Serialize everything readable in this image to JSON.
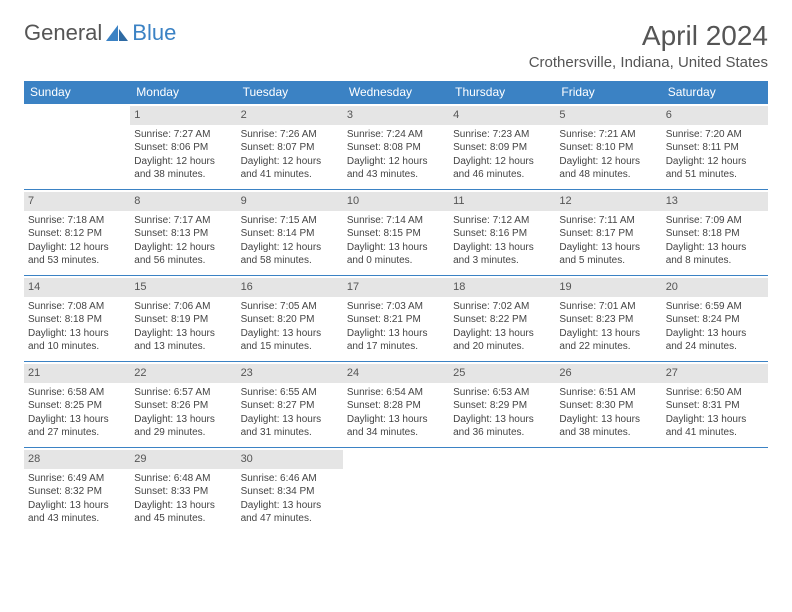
{
  "logo": {
    "part1": "General",
    "part2": "Blue"
  },
  "title": "April 2024",
  "location": "Crothersville, Indiana, United States",
  "colors": {
    "accent": "#3b82c4",
    "daynum_bg": "#e5e5e5",
    "text": "#444444"
  },
  "day_headers": [
    "Sunday",
    "Monday",
    "Tuesday",
    "Wednesday",
    "Thursday",
    "Friday",
    "Saturday"
  ],
  "weeks": [
    [
      {
        "empty": true
      },
      {
        "n": "1",
        "sr": "Sunrise: 7:27 AM",
        "ss": "Sunset: 8:06 PM",
        "dl1": "Daylight: 12 hours",
        "dl2": "and 38 minutes."
      },
      {
        "n": "2",
        "sr": "Sunrise: 7:26 AM",
        "ss": "Sunset: 8:07 PM",
        "dl1": "Daylight: 12 hours",
        "dl2": "and 41 minutes."
      },
      {
        "n": "3",
        "sr": "Sunrise: 7:24 AM",
        "ss": "Sunset: 8:08 PM",
        "dl1": "Daylight: 12 hours",
        "dl2": "and 43 minutes."
      },
      {
        "n": "4",
        "sr": "Sunrise: 7:23 AM",
        "ss": "Sunset: 8:09 PM",
        "dl1": "Daylight: 12 hours",
        "dl2": "and 46 minutes."
      },
      {
        "n": "5",
        "sr": "Sunrise: 7:21 AM",
        "ss": "Sunset: 8:10 PM",
        "dl1": "Daylight: 12 hours",
        "dl2": "and 48 minutes."
      },
      {
        "n": "6",
        "sr": "Sunrise: 7:20 AM",
        "ss": "Sunset: 8:11 PM",
        "dl1": "Daylight: 12 hours",
        "dl2": "and 51 minutes."
      }
    ],
    [
      {
        "n": "7",
        "sr": "Sunrise: 7:18 AM",
        "ss": "Sunset: 8:12 PM",
        "dl1": "Daylight: 12 hours",
        "dl2": "and 53 minutes."
      },
      {
        "n": "8",
        "sr": "Sunrise: 7:17 AM",
        "ss": "Sunset: 8:13 PM",
        "dl1": "Daylight: 12 hours",
        "dl2": "and 56 minutes."
      },
      {
        "n": "9",
        "sr": "Sunrise: 7:15 AM",
        "ss": "Sunset: 8:14 PM",
        "dl1": "Daylight: 12 hours",
        "dl2": "and 58 minutes."
      },
      {
        "n": "10",
        "sr": "Sunrise: 7:14 AM",
        "ss": "Sunset: 8:15 PM",
        "dl1": "Daylight: 13 hours",
        "dl2": "and 0 minutes."
      },
      {
        "n": "11",
        "sr": "Sunrise: 7:12 AM",
        "ss": "Sunset: 8:16 PM",
        "dl1": "Daylight: 13 hours",
        "dl2": "and 3 minutes."
      },
      {
        "n": "12",
        "sr": "Sunrise: 7:11 AM",
        "ss": "Sunset: 8:17 PM",
        "dl1": "Daylight: 13 hours",
        "dl2": "and 5 minutes."
      },
      {
        "n": "13",
        "sr": "Sunrise: 7:09 AM",
        "ss": "Sunset: 8:18 PM",
        "dl1": "Daylight: 13 hours",
        "dl2": "and 8 minutes."
      }
    ],
    [
      {
        "n": "14",
        "sr": "Sunrise: 7:08 AM",
        "ss": "Sunset: 8:18 PM",
        "dl1": "Daylight: 13 hours",
        "dl2": "and 10 minutes."
      },
      {
        "n": "15",
        "sr": "Sunrise: 7:06 AM",
        "ss": "Sunset: 8:19 PM",
        "dl1": "Daylight: 13 hours",
        "dl2": "and 13 minutes."
      },
      {
        "n": "16",
        "sr": "Sunrise: 7:05 AM",
        "ss": "Sunset: 8:20 PM",
        "dl1": "Daylight: 13 hours",
        "dl2": "and 15 minutes."
      },
      {
        "n": "17",
        "sr": "Sunrise: 7:03 AM",
        "ss": "Sunset: 8:21 PM",
        "dl1": "Daylight: 13 hours",
        "dl2": "and 17 minutes."
      },
      {
        "n": "18",
        "sr": "Sunrise: 7:02 AM",
        "ss": "Sunset: 8:22 PM",
        "dl1": "Daylight: 13 hours",
        "dl2": "and 20 minutes."
      },
      {
        "n": "19",
        "sr": "Sunrise: 7:01 AM",
        "ss": "Sunset: 8:23 PM",
        "dl1": "Daylight: 13 hours",
        "dl2": "and 22 minutes."
      },
      {
        "n": "20",
        "sr": "Sunrise: 6:59 AM",
        "ss": "Sunset: 8:24 PM",
        "dl1": "Daylight: 13 hours",
        "dl2": "and 24 minutes."
      }
    ],
    [
      {
        "n": "21",
        "sr": "Sunrise: 6:58 AM",
        "ss": "Sunset: 8:25 PM",
        "dl1": "Daylight: 13 hours",
        "dl2": "and 27 minutes."
      },
      {
        "n": "22",
        "sr": "Sunrise: 6:57 AM",
        "ss": "Sunset: 8:26 PM",
        "dl1": "Daylight: 13 hours",
        "dl2": "and 29 minutes."
      },
      {
        "n": "23",
        "sr": "Sunrise: 6:55 AM",
        "ss": "Sunset: 8:27 PM",
        "dl1": "Daylight: 13 hours",
        "dl2": "and 31 minutes."
      },
      {
        "n": "24",
        "sr": "Sunrise: 6:54 AM",
        "ss": "Sunset: 8:28 PM",
        "dl1": "Daylight: 13 hours",
        "dl2": "and 34 minutes."
      },
      {
        "n": "25",
        "sr": "Sunrise: 6:53 AM",
        "ss": "Sunset: 8:29 PM",
        "dl1": "Daylight: 13 hours",
        "dl2": "and 36 minutes."
      },
      {
        "n": "26",
        "sr": "Sunrise: 6:51 AM",
        "ss": "Sunset: 8:30 PM",
        "dl1": "Daylight: 13 hours",
        "dl2": "and 38 minutes."
      },
      {
        "n": "27",
        "sr": "Sunrise: 6:50 AM",
        "ss": "Sunset: 8:31 PM",
        "dl1": "Daylight: 13 hours",
        "dl2": "and 41 minutes."
      }
    ],
    [
      {
        "n": "28",
        "sr": "Sunrise: 6:49 AM",
        "ss": "Sunset: 8:32 PM",
        "dl1": "Daylight: 13 hours",
        "dl2": "and 43 minutes."
      },
      {
        "n": "29",
        "sr": "Sunrise: 6:48 AM",
        "ss": "Sunset: 8:33 PM",
        "dl1": "Daylight: 13 hours",
        "dl2": "and 45 minutes."
      },
      {
        "n": "30",
        "sr": "Sunrise: 6:46 AM",
        "ss": "Sunset: 8:34 PM",
        "dl1": "Daylight: 13 hours",
        "dl2": "and 47 minutes."
      },
      {
        "empty": true
      },
      {
        "empty": true
      },
      {
        "empty": true
      },
      {
        "empty": true
      }
    ]
  ]
}
